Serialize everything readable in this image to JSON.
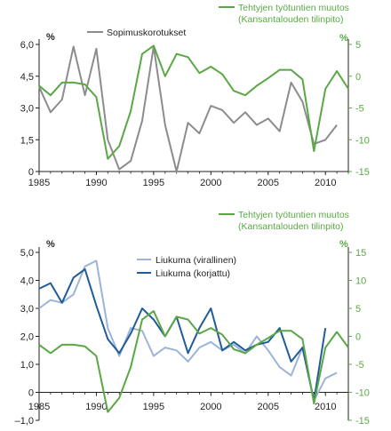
{
  "chart_data": [
    {
      "type": "line",
      "title": "",
      "xlabel": "",
      "x_ticks": [
        1985,
        1990,
        1995,
        2000,
        2005,
        2010
      ],
      "xlim": [
        1985,
        2012
      ],
      "left_axis": {
        "label": "%",
        "ylim": [
          0,
          6
        ],
        "ticks": [
          "0",
          "1,5",
          "3,0",
          "4,5",
          "6,0"
        ]
      },
      "right_axis": {
        "label": "%",
        "ylim": [
          -15,
          5
        ],
        "ticks": [
          "-15",
          "-10",
          "-5",
          "0",
          "5"
        ]
      },
      "legend_right": [
        "Tehtyjen työtuntien muutos",
        "(Kansantalouden tilinpito)"
      ],
      "series": [
        {
          "name": "Sopimuskorotukset",
          "axis": "left",
          "color": "#8c8c8c",
          "x": [
            1985,
            1986,
            1987,
            1988,
            1989,
            1990,
            1991,
            1992,
            1993,
            1994,
            1995,
            1996,
            1997,
            1998,
            1999,
            2000,
            2001,
            2002,
            2003,
            2004,
            2005,
            2006,
            2007,
            2008,
            2009,
            2010,
            2011
          ],
          "values": [
            4.0,
            2.8,
            3.4,
            5.9,
            3.6,
            5.8,
            1.5,
            0.1,
            0.5,
            2.4,
            5.9,
            2.2,
            0.0,
            2.3,
            1.8,
            3.1,
            2.9,
            2.3,
            2.8,
            2.2,
            2.5,
            1.9,
            4.2,
            3.3,
            1.3,
            1.5,
            2.2
          ]
        },
        {
          "name": "Tehtyjen työtuntien muutos (Kansantalouden tilinpito)",
          "axis": "right",
          "color": "#5aa845",
          "x": [
            1985,
            1986,
            1987,
            1988,
            1989,
            1990,
            1991,
            1992,
            1993,
            1994,
            1995,
            1996,
            1997,
            1998,
            1999,
            2000,
            2001,
            2002,
            2003,
            2004,
            2005,
            2006,
            2007,
            2008,
            2009,
            2010,
            2011,
            2012
          ],
          "values": [
            -1.5,
            -3.0,
            -1.0,
            -1.0,
            -1.3,
            -3.3,
            -13.0,
            -11.0,
            -5.5,
            3.5,
            4.8,
            0.0,
            3.5,
            3.0,
            0.5,
            1.5,
            0.3,
            -2.3,
            -3.0,
            -1.5,
            -0.3,
            1.0,
            1.0,
            -0.5,
            -11.8,
            -2.0,
            0.8,
            -2.0
          ]
        }
      ]
    },
    {
      "type": "line",
      "title": "",
      "xlabel": "",
      "x_ticks": [
        1985,
        1990,
        1995,
        2000,
        2005,
        2010
      ],
      "xlim": [
        1985,
        2012
      ],
      "left_axis": {
        "label": "%",
        "ylim": [
          -1,
          5
        ],
        "ticks": [
          "–1,0",
          "0",
          "1,0",
          "2,0",
          "3,0",
          "4,0",
          "5,0"
        ]
      },
      "right_axis": {
        "label": "%",
        "ylim": [
          -15,
          15
        ],
        "ticks": [
          "-15",
          "-10",
          "-5",
          "0",
          "5",
          "10",
          "15"
        ]
      },
      "legend_right": [
        "Tehtyjen työtuntien muutos",
        "(Kansantalouden tilinpito)"
      ],
      "series": [
        {
          "name": "Liukuma (virallinen)",
          "axis": "left",
          "color": "#9db4d9",
          "x": [
            1985,
            1986,
            1987,
            1988,
            1989,
            1990,
            1991,
            1992,
            1993,
            1994,
            1995,
            1996,
            1997,
            1998,
            1999,
            2000,
            2001,
            2002,
            2003,
            2004,
            2005,
            2006,
            2007,
            2008,
            2009,
            2010,
            2011
          ],
          "values": [
            3.0,
            3.3,
            3.2,
            3.5,
            4.5,
            4.7,
            2.3,
            1.3,
            2.3,
            2.2,
            1.3,
            1.6,
            1.5,
            1.1,
            1.6,
            1.8,
            1.5,
            1.7,
            1.4,
            2.0,
            1.5,
            0.9,
            0.6,
            1.6,
            -0.3,
            0.5,
            0.7
          ]
        },
        {
          "name": "Liukuma (korjattu)",
          "axis": "left",
          "color": "#1f5c99",
          "x": [
            1985,
            1986,
            1987,
            1988,
            1989,
            1990,
            1991,
            1992,
            1993,
            1994,
            1995,
            1996,
            1997,
            1998,
            1999,
            2000,
            2001,
            2002,
            2003,
            2004,
            2005,
            2006,
            2007,
            2008,
            2009,
            2010
          ],
          "values": [
            3.7,
            3.9,
            3.2,
            4.1,
            4.4,
            3.1,
            1.9,
            1.4,
            2.1,
            3.0,
            2.6,
            2.0,
            2.7,
            1.4,
            2.3,
            3.0,
            1.5,
            1.8,
            1.5,
            1.7,
            1.8,
            2.3,
            1.1,
            1.6,
            -0.3,
            2.3
          ]
        },
        {
          "name": "Tehtyjen työtuntien muutos (Kansantalouden tilinpito)",
          "axis": "right",
          "color": "#5aa845",
          "x": [
            1985,
            1986,
            1987,
            1988,
            1989,
            1990,
            1991,
            1992,
            1993,
            1994,
            1995,
            1996,
            1997,
            1998,
            1999,
            2000,
            2001,
            2002,
            2003,
            2004,
            2005,
            2006,
            2007,
            2008,
            2009,
            2010,
            2011,
            2012
          ],
          "values": [
            -1.5,
            -3.0,
            -1.5,
            -1.5,
            -1.8,
            -3.5,
            -13.5,
            -11.0,
            -5.5,
            3.0,
            4.5,
            0.0,
            3.5,
            3.0,
            0.5,
            1.5,
            0.3,
            -2.3,
            -3.0,
            -1.5,
            -0.3,
            1.0,
            1.0,
            -0.5,
            -12.0,
            -2.0,
            0.8,
            -2.0
          ]
        }
      ]
    }
  ]
}
